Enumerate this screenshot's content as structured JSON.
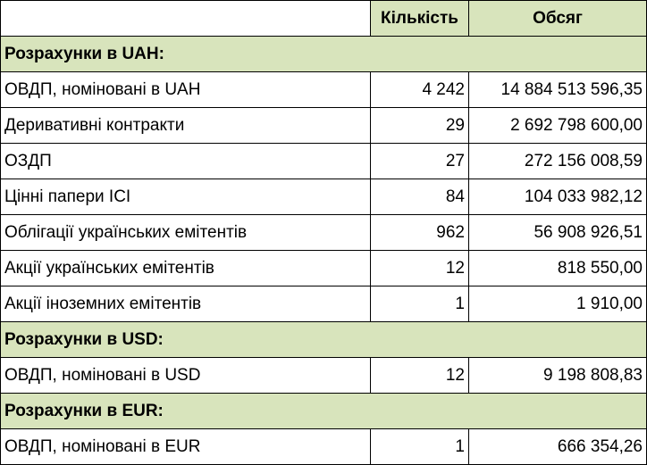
{
  "header": {
    "col_name": "",
    "col_count": "Кількість",
    "col_volume": "Обсяг"
  },
  "sections": [
    {
      "title": "Розрахунки в UAH:",
      "rows": [
        {
          "name": "ОВДП, номіновані в UAH",
          "count": "4 242",
          "volume": "14 884 513 596,35"
        },
        {
          "name": "Деривативні контракти",
          "count": "29",
          "volume": "2 692 798 600,00"
        },
        {
          "name": "ОЗДП",
          "count": "27",
          "volume": "272 156 008,59"
        },
        {
          "name": "Цінні папери ICI",
          "count": "84",
          "volume": "104 033 982,12"
        },
        {
          "name": "Облігації українських емітентів",
          "count": "962",
          "volume": "56 908 926,51"
        },
        {
          "name": "Акції українських емітентів",
          "count": "12",
          "volume": "818 550,00"
        },
        {
          "name": "Акції іноземних емітентів",
          "count": "1",
          "volume": "1 910,00"
        }
      ]
    },
    {
      "title": "Розрахунки в USD:",
      "rows": [
        {
          "name": "ОВДП, номіновані в USD",
          "count": "12",
          "volume": "9 198 808,83"
        }
      ]
    },
    {
      "title": "Розрахунки в EUR:",
      "rows": [
        {
          "name": "ОВДП, номіновані в EUR",
          "count": "1",
          "volume": "666 354,26"
        }
      ]
    }
  ]
}
